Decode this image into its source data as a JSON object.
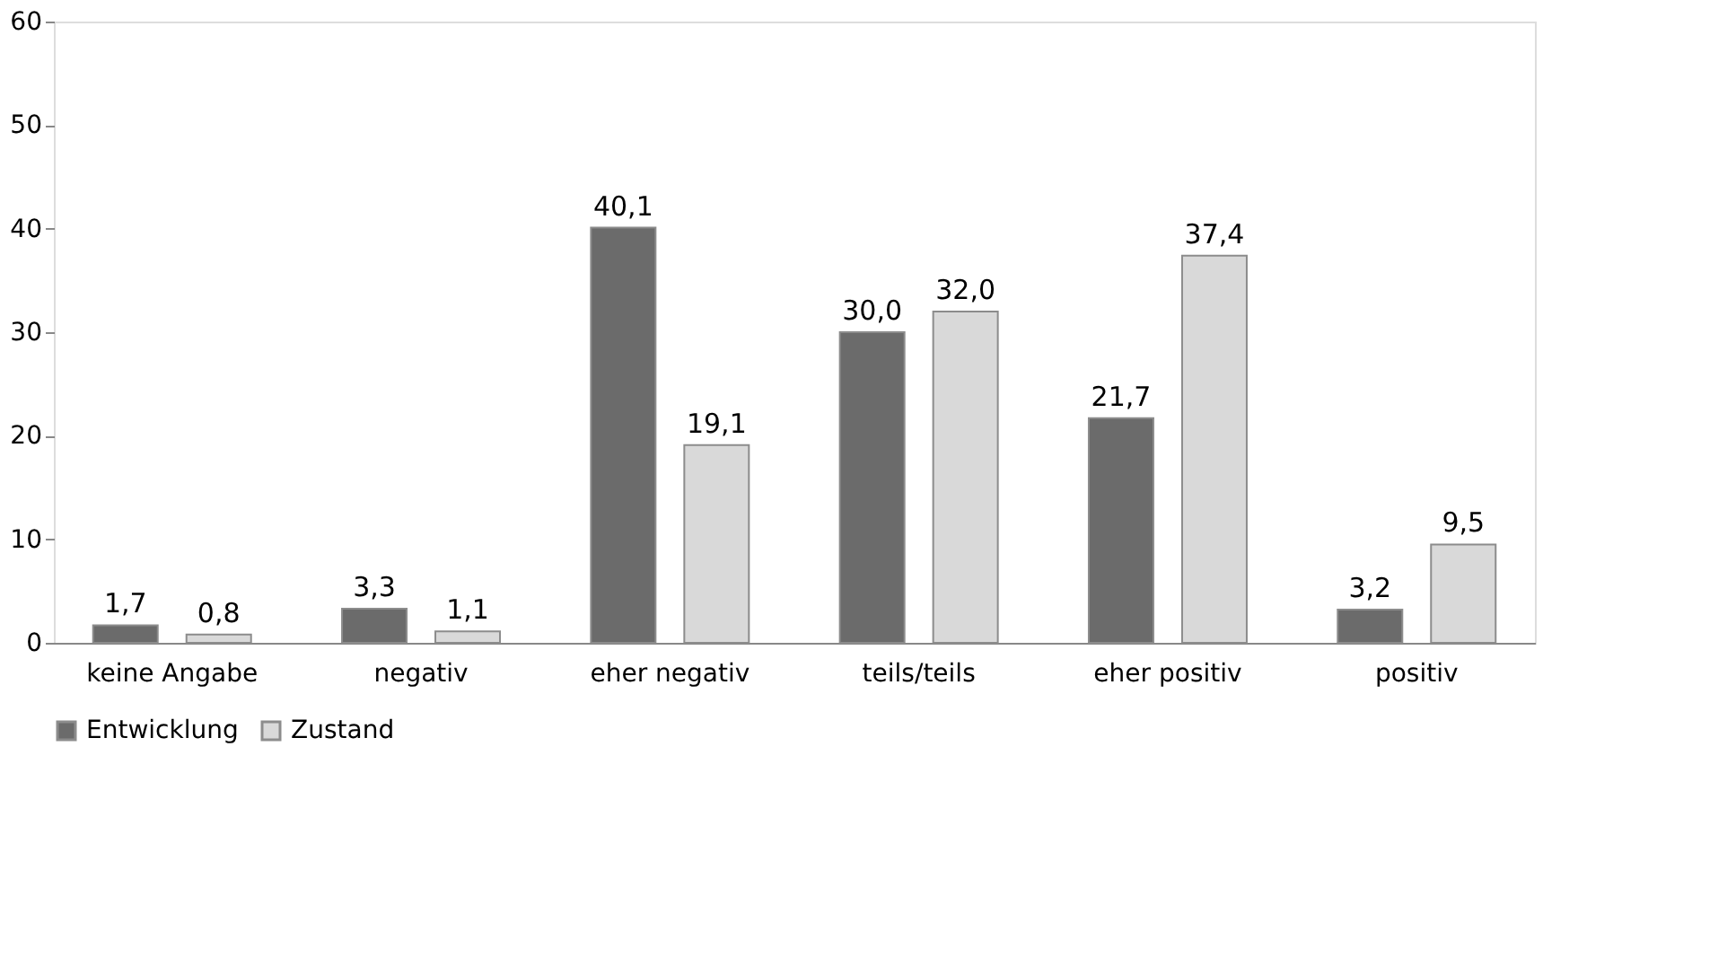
{
  "chart_data": {
    "type": "bar",
    "categories": [
      "keine Angabe",
      "negativ",
      "eher negativ",
      "teils/teils",
      "eher positiv",
      "positiv"
    ],
    "series": [
      {
        "name": "Entwicklung",
        "color": "#6b6b6b",
        "values": [
          1.7,
          3.3,
          40.1,
          30.0,
          21.7,
          3.2
        ],
        "value_labels": [
          "1,7",
          "3,3",
          "40,1",
          "30,0",
          "21,7",
          "3,2"
        ]
      },
      {
        "name": "Zustand",
        "color": "#d9d9d9",
        "values": [
          0.8,
          1.1,
          19.1,
          32.0,
          37.4,
          9.5
        ],
        "value_labels": [
          "0,8",
          "1,1",
          "19,1",
          "32,0",
          "37,4",
          "9,5"
        ]
      }
    ],
    "ylim": [
      0,
      60
    ],
    "yticks": [
      0,
      10,
      20,
      30,
      40,
      50,
      60
    ],
    "grid": false,
    "legend": "bottom"
  }
}
